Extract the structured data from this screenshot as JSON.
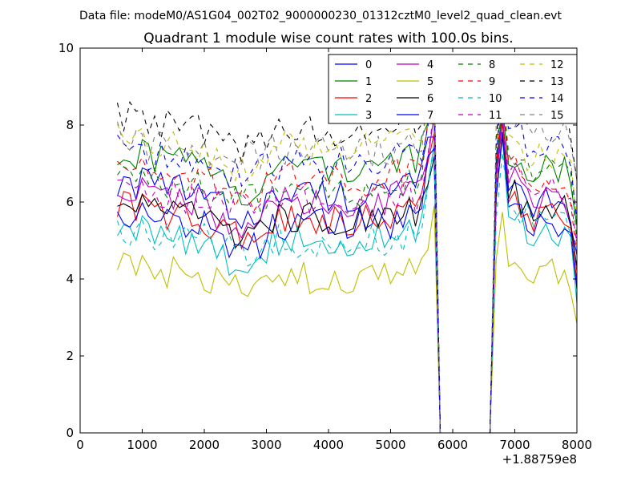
{
  "chart_data": {
    "type": "line",
    "suptitle": "Data file: modeM0/AS1G04_002T02_9000000230_01312cztM0_level2_quad_clean.evt",
    "title": "Quadrant 1 module wise count rates with 100.0s bins.",
    "xlabel": "",
    "ylabel": "",
    "x_offset_label": "+1.88759e8",
    "xlim": [
      0,
      8000
    ],
    "ylim": [
      0,
      10
    ],
    "xticks": [
      0,
      1000,
      2000,
      3000,
      4000,
      5000,
      6000,
      7000,
      8000
    ],
    "yticks": [
      0,
      2,
      4,
      6,
      8,
      10
    ],
    "grid": false,
    "legend_position": "top-right",
    "legend_columns": 4,
    "x_start": 600,
    "x_step": 100,
    "gap": {
      "start": 5800,
      "end": 6600
    },
    "series": [
      {
        "name": "0",
        "color": "#0000ff",
        "dash": "solid",
        "level": 6.2,
        "drop": 0.5,
        "peak": 7.9,
        "post": 6.0
      },
      {
        "name": "1",
        "color": "#008000",
        "dash": "solid",
        "level": 6.95,
        "drop": 0.7,
        "peak": 8.1,
        "post": 6.9
      },
      {
        "name": "2",
        "color": "#ff0000",
        "dash": "solid",
        "level": 5.55,
        "drop": 0.5,
        "peak": 7.7,
        "post": 5.6
      },
      {
        "name": "3",
        "color": "#00bfbf",
        "dash": "solid",
        "level": 5.0,
        "drop": 0.6,
        "peak": 7.3,
        "post": 5.2
      },
      {
        "name": "4",
        "color": "#bf00bf",
        "dash": "solid",
        "level": 6.0,
        "drop": 0.8,
        "peak": 7.9,
        "post": 6.2
      },
      {
        "name": "5",
        "color": "#bfbf00",
        "dash": "solid",
        "level": 4.0,
        "drop": 0.3,
        "peak": 5.4,
        "post": 4.2
      },
      {
        "name": "6",
        "color": "#000000",
        "dash": "solid",
        "level": 5.6,
        "drop": 0.6,
        "peak": 7.4,
        "post": 5.8
      },
      {
        "name": "7",
        "color": "#0000ff",
        "dash": "solid",
        "level": 5.4,
        "drop": 0.6,
        "peak": 7.5,
        "post": 5.4
      },
      {
        "name": "8",
        "color": "#008000",
        "dash": "dashed",
        "level": 6.3,
        "drop": 0.3,
        "peak": 8.7,
        "post": 6.8
      },
      {
        "name": "9",
        "color": "#ff0000",
        "dash": "dashed",
        "level": 6.6,
        "drop": 0.5,
        "peak": 8.5,
        "post": 6.6
      },
      {
        "name": "10",
        "color": "#00bfbf",
        "dash": "dashed",
        "level": 5.0,
        "drop": 0.3,
        "peak": 7.0,
        "post": 5.6
      },
      {
        "name": "11",
        "color": "#bf00bf",
        "dash": "dashed",
        "level": 6.0,
        "drop": 0.1,
        "peak": 7.9,
        "post": 6.4
      },
      {
        "name": "12",
        "color": "#bfbf00",
        "dash": "dashed",
        "level": 7.4,
        "drop": 0.6,
        "peak": 9.3,
        "post": 7.2
      },
      {
        "name": "13",
        "color": "#000000",
        "dash": "dashed",
        "level": 7.9,
        "drop": 0.4,
        "peak": 9.6,
        "post": 8.4
      },
      {
        "name": "14",
        "color": "#0000ff",
        "dash": "dashed",
        "level": 7.0,
        "drop": 0.2,
        "peak": 9.1,
        "post": 7.5
      },
      {
        "name": "15",
        "color": "#808080",
        "dash": "dashed",
        "level": 7.3,
        "drop": 0.0,
        "peak": 9.4,
        "post": 7.9
      }
    ]
  }
}
